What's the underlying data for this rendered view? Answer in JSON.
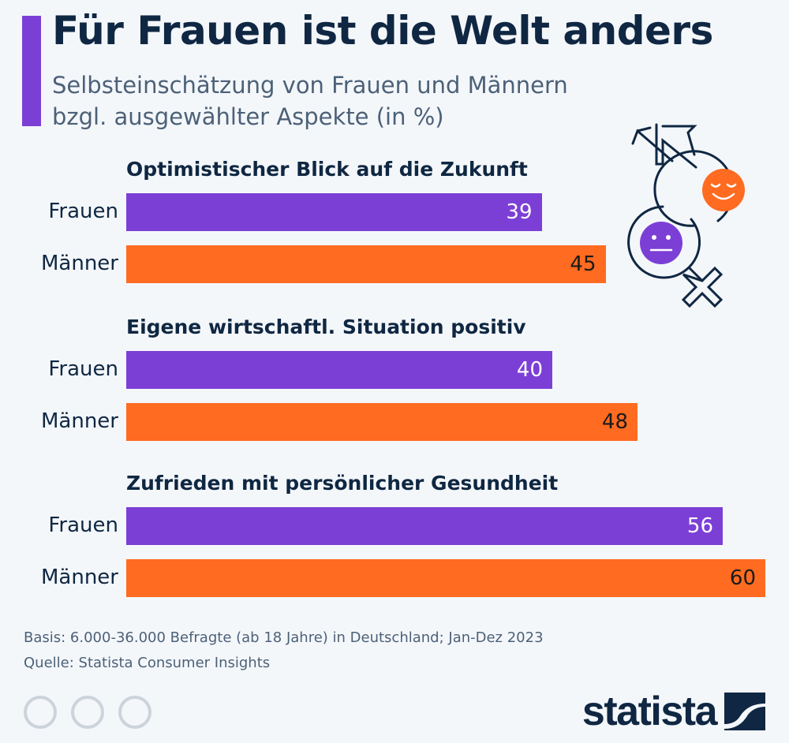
{
  "title": "Für Frauen ist die Welt anders",
  "subtitle_line1": "Selbsteinschätzung von Frauen und Männern",
  "subtitle_line2": "bzgl. ausgewählter Aspekte (in %)",
  "colors": {
    "frauen": "#7c3fd6",
    "maenner": "#ff6b21",
    "text": "#0f2742"
  },
  "chart_data": {
    "type": "bar",
    "orientation": "horizontal",
    "title": "Für Frauen ist die Welt anders",
    "subtitle": "Selbsteinschätzung von Frauen und Männern bzgl. ausgewählter Aspekte (in %)",
    "unit": "%",
    "xlim": [
      0,
      60
    ],
    "grid": false,
    "groups": [
      {
        "title": "Optimistischer Blick auf die Zukunft",
        "rows": [
          {
            "label": "Frauen",
            "value": 39
          },
          {
            "label": "Männer",
            "value": 45
          }
        ]
      },
      {
        "title": "Eigene wirtschaftl. Situation positiv",
        "rows": [
          {
            "label": "Frauen",
            "value": 40
          },
          {
            "label": "Männer",
            "value": 48
          }
        ]
      },
      {
        "title": "Zufrieden mit persönlicher Gesundheit",
        "rows": [
          {
            "label": "Frauen",
            "value": 56
          },
          {
            "label": "Männer",
            "value": 60
          }
        ]
      }
    ]
  },
  "footer": {
    "basis": "Basis: 6.000-36.000 Befragte (ab 18 Jahre) in Deutschland; Jan-Dez 2023",
    "source": "Quelle: Statista Consumer Insights",
    "license_icons": [
      "creative-commons-icon",
      "attribution-icon",
      "no-derivatives-icon"
    ],
    "brand": "statista"
  }
}
